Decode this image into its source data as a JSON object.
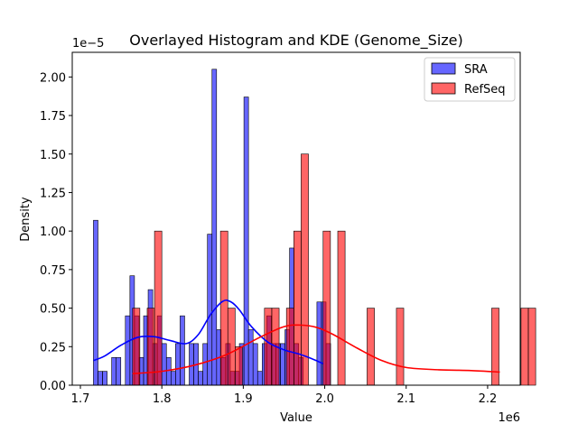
{
  "chart_data": {
    "type": "bar",
    "title": "Overlayed Histogram and KDE (Genome_Size)",
    "xlabel": "Value",
    "ylabel": "Density",
    "x_multiplier_label": "1e6",
    "y_multiplier_label": "1e−5",
    "xlim": [
      1.69,
      2.24
    ],
    "ylim": [
      0,
      2.16
    ],
    "x_ticks": [
      {
        "value": 1.7,
        "label": "1.7"
      },
      {
        "value": 1.8,
        "label": "1.8"
      },
      {
        "value": 1.9,
        "label": "1.9"
      },
      {
        "value": 2.0,
        "label": "2.0"
      },
      {
        "value": 2.1,
        "label": "2.1"
      },
      {
        "value": 2.2,
        "label": "2.2"
      }
    ],
    "y_ticks": [
      {
        "value": 0.0,
        "label": "0.00"
      },
      {
        "value": 0.25,
        "label": "0.25"
      },
      {
        "value": 0.5,
        "label": "0.50"
      },
      {
        "value": 0.75,
        "label": "0.75"
      },
      {
        "value": 1.0,
        "label": "1.00"
      },
      {
        "value": 1.25,
        "label": "1.25"
      },
      {
        "value": 1.5,
        "label": "1.50"
      },
      {
        "value": 1.75,
        "label": "1.75"
      },
      {
        "value": 2.0,
        "label": "2.00"
      }
    ],
    "grid": false,
    "legend_position": "top-right",
    "series": [
      {
        "name": "SRA",
        "color": "#0000ff",
        "fill_alpha": 0.6,
        "bin_start": 1.716,
        "bin_width": 0.0056,
        "values": [
          1.07,
          0.09,
          0.09,
          0,
          0.18,
          0.18,
          0,
          0.45,
          0.71,
          0.45,
          0.18,
          0.45,
          0.62,
          0.27,
          0.45,
          0.27,
          0.18,
          0.09,
          0.27,
          0.45,
          0,
          0.27,
          0.27,
          0.09,
          0.27,
          0.98,
          2.05,
          0.36,
          0.18,
          0.27,
          0.09,
          0.09,
          0.27,
          1.87,
          0.36,
          0.27,
          0.09,
          0.27,
          0.45,
          0.27,
          0.27,
          0.27,
          0.36,
          0.89,
          0.27,
          0.18,
          0,
          0,
          0,
          0.54,
          0.54,
          0.27
        ],
        "kde": {
          "x": [
            1.716,
            1.73,
            1.75,
            1.77,
            1.79,
            1.81,
            1.83,
            1.845,
            1.86,
            1.875,
            1.885,
            1.895,
            1.91,
            1.93,
            1.95,
            1.97,
            1.985,
            1.998
          ],
          "y": [
            0.16,
            0.19,
            0.26,
            0.31,
            0.315,
            0.29,
            0.27,
            0.33,
            0.46,
            0.545,
            0.54,
            0.49,
            0.38,
            0.28,
            0.23,
            0.2,
            0.17,
            0.14
          ]
        }
      },
      {
        "name": "RefSeq",
        "color": "#ff0000",
        "fill_alpha": 0.6,
        "bin_start": 1.764,
        "bin_width": 0.009,
        "values": [
          0.5,
          0,
          0.5,
          1.0,
          0,
          0,
          0,
          0,
          0,
          0,
          0,
          0,
          1.0,
          0.5,
          0.25,
          0,
          0,
          0,
          0.5,
          0.5,
          0,
          0.5,
          1.0,
          1.5,
          0,
          0,
          1.0,
          0,
          1.0,
          0,
          0,
          0,
          0.5,
          0,
          0,
          0,
          0.5,
          0,
          0,
          0,
          0,
          0,
          0,
          0,
          0,
          0,
          0,
          0,
          0,
          0.5,
          0,
          0,
          0,
          0.5,
          0.5
        ]
      }
    ],
    "kde_refseq": {
      "x": [
        1.764,
        1.8,
        1.84,
        1.88,
        1.92,
        1.95,
        1.97,
        1.99,
        2.01,
        2.04,
        2.07,
        2.1,
        2.14,
        2.18,
        2.215
      ],
      "y": [
        0.075,
        0.09,
        0.13,
        0.2,
        0.31,
        0.38,
        0.39,
        0.375,
        0.33,
        0.24,
        0.16,
        0.115,
        0.1,
        0.095,
        0.085
      ]
    }
  }
}
